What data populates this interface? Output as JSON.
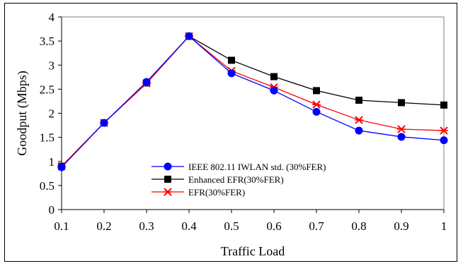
{
  "chart_data": {
    "type": "line",
    "xlabel": "Traffic Load",
    "ylabel": "Goodput (Mbps)",
    "x": [
      0.1,
      0.2,
      0.3,
      0.4,
      0.5,
      0.6,
      0.7,
      0.8,
      0.9,
      1.0
    ],
    "x_tick_labels": [
      "0.1",
      "0.2",
      "0.3",
      "0.4",
      "0.5",
      "0.6",
      "0.7",
      "0.8",
      "0.9",
      "1"
    ],
    "y_tick_labels": [
      "0",
      "0.5",
      "1",
      "1.5",
      "2",
      "2.5",
      "3",
      "3.5",
      "4"
    ],
    "xlim": [
      0.1,
      1.0
    ],
    "ylim": [
      0,
      4
    ],
    "grid": false,
    "legend_position": "bottom-center",
    "series": [
      {
        "name": "IEEE 802.11 IWLAN std. (30%FER)",
        "color": "#0000ff",
        "marker": "circle",
        "values": [
          0.88,
          1.8,
          2.65,
          3.6,
          2.83,
          2.47,
          2.03,
          1.64,
          1.51,
          1.44
        ]
      },
      {
        "name": "Enhanced EFR(30%FER)",
        "color": "#000000",
        "marker": "square",
        "values": [
          0.9,
          1.8,
          2.63,
          3.6,
          3.1,
          2.76,
          2.47,
          2.27,
          2.22,
          2.17
        ]
      },
      {
        "name": "EFR(30%FER)",
        "color": "#ff0000",
        "marker": "x-star",
        "values": [
          0.9,
          1.8,
          2.62,
          3.6,
          2.88,
          2.54,
          2.18,
          1.86,
          1.67,
          1.64
        ]
      }
    ]
  }
}
